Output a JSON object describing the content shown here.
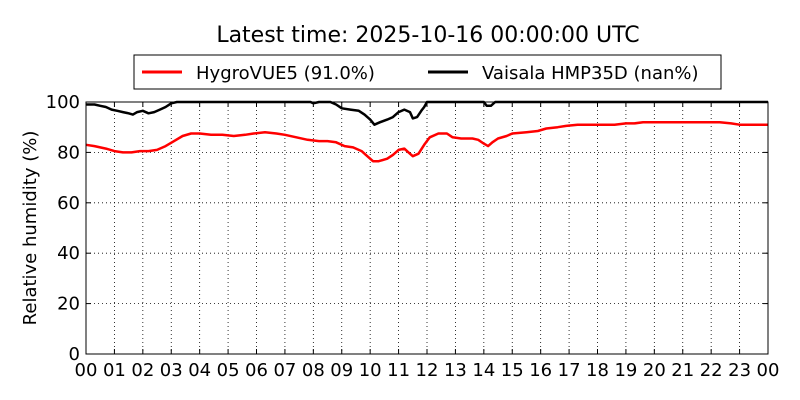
{
  "chart_data": {
    "type": "line",
    "title": "Latest time: 2025-10-16 00:00:00 UTC",
    "xlabel": "",
    "ylabel": "Relative humidity (%)",
    "xlim": [
      0,
      24
    ],
    "ylim": [
      0,
      100
    ],
    "x_ticks": [
      "00",
      "01",
      "02",
      "03",
      "04",
      "05",
      "06",
      "07",
      "08",
      "09",
      "10",
      "11",
      "12",
      "13",
      "14",
      "15",
      "16",
      "17",
      "18",
      "19",
      "20",
      "21",
      "22",
      "23",
      "00"
    ],
    "y_ticks": [
      0,
      20,
      40,
      60,
      80,
      100
    ],
    "grid": true,
    "legend_placement": "top-center",
    "series": [
      {
        "name": "HygroVUE5 (91.0%)",
        "color": "#ff0000",
        "points": [
          [
            0.0,
            83
          ],
          [
            0.3,
            82.5
          ],
          [
            0.5,
            82
          ],
          [
            0.7,
            81.5
          ],
          [
            1.0,
            80.5
          ],
          [
            1.3,
            80
          ],
          [
            1.6,
            80
          ],
          [
            1.9,
            80.5
          ],
          [
            2.2,
            80.5
          ],
          [
            2.5,
            81
          ],
          [
            2.8,
            82.5
          ],
          [
            3.1,
            84.5
          ],
          [
            3.4,
            86.5
          ],
          [
            3.7,
            87.5
          ],
          [
            4.0,
            87.5
          ],
          [
            4.4,
            87
          ],
          [
            4.8,
            87
          ],
          [
            5.2,
            86.5
          ],
          [
            5.6,
            87
          ],
          [
            5.9,
            87.5
          ],
          [
            6.3,
            88
          ],
          [
            6.7,
            87.5
          ],
          [
            7.0,
            87
          ],
          [
            7.4,
            86
          ],
          [
            7.8,
            85
          ],
          [
            8.2,
            84.5
          ],
          [
            8.5,
            84.5
          ],
          [
            8.8,
            84
          ],
          [
            9.1,
            82.5
          ],
          [
            9.4,
            82
          ],
          [
            9.7,
            80.5
          ],
          [
            9.9,
            78.5
          ],
          [
            10.1,
            76.5
          ],
          [
            10.3,
            76.5
          ],
          [
            10.6,
            77.5
          ],
          [
            10.8,
            79
          ],
          [
            11.0,
            81
          ],
          [
            11.2,
            81.5
          ],
          [
            11.35,
            80
          ],
          [
            11.5,
            78.5
          ],
          [
            11.7,
            79.5
          ],
          [
            11.9,
            83
          ],
          [
            12.1,
            86
          ],
          [
            12.4,
            87.5
          ],
          [
            12.7,
            87.5
          ],
          [
            12.9,
            86
          ],
          [
            13.2,
            85.5
          ],
          [
            13.6,
            85.5
          ],
          [
            13.8,
            85
          ],
          [
            14.0,
            83.5
          ],
          [
            14.15,
            82.5
          ],
          [
            14.3,
            84
          ],
          [
            14.5,
            85.5
          ],
          [
            14.8,
            86.5
          ],
          [
            15.0,
            87.5
          ],
          [
            15.5,
            88
          ],
          [
            15.9,
            88.5
          ],
          [
            16.2,
            89.5
          ],
          [
            16.6,
            90
          ],
          [
            16.9,
            90.5
          ],
          [
            17.3,
            91
          ],
          [
            18.0,
            91
          ],
          [
            18.6,
            91
          ],
          [
            19.0,
            91.5
          ],
          [
            19.3,
            91.5
          ],
          [
            19.6,
            92
          ],
          [
            20.5,
            92
          ],
          [
            21.5,
            92
          ],
          [
            22.3,
            92
          ],
          [
            22.7,
            91.5
          ],
          [
            23.0,
            91
          ],
          [
            23.5,
            91
          ],
          [
            24.0,
            91
          ]
        ]
      },
      {
        "name": "Vaisala HMP35D (nan%)",
        "color": "#000000",
        "points": [
          [
            0.0,
            99
          ],
          [
            0.3,
            99
          ],
          [
            0.5,
            98.5
          ],
          [
            0.7,
            98
          ],
          [
            0.9,
            97
          ],
          [
            1.1,
            96.5
          ],
          [
            1.3,
            96
          ],
          [
            1.5,
            95.5
          ],
          [
            1.65,
            95
          ],
          [
            1.8,
            96
          ],
          [
            2.0,
            96.5
          ],
          [
            2.2,
            95.5
          ],
          [
            2.4,
            96
          ],
          [
            2.6,
            97
          ],
          [
            2.8,
            98
          ],
          [
            3.0,
            99.5
          ],
          [
            3.2,
            100
          ],
          [
            7.9,
            100
          ],
          [
            8.0,
            99.5
          ],
          [
            8.2,
            100
          ],
          [
            8.6,
            100
          ],
          [
            8.8,
            99
          ],
          [
            9.0,
            97.5
          ],
          [
            9.3,
            97
          ],
          [
            9.6,
            96.5
          ],
          [
            9.8,
            95
          ],
          [
            10.0,
            93
          ],
          [
            10.15,
            91
          ],
          [
            10.35,
            92
          ],
          [
            10.6,
            93
          ],
          [
            10.8,
            94
          ],
          [
            11.0,
            96
          ],
          [
            11.2,
            97
          ],
          [
            11.4,
            96
          ],
          [
            11.5,
            93.5
          ],
          [
            11.65,
            94
          ],
          [
            11.8,
            96.5
          ],
          [
            11.9,
            98
          ],
          [
            12.0,
            100
          ],
          [
            14.0,
            100
          ],
          [
            14.1,
            98.5
          ],
          [
            14.25,
            98.5
          ],
          [
            14.4,
            100
          ],
          [
            24.0,
            100
          ]
        ]
      }
    ]
  }
}
